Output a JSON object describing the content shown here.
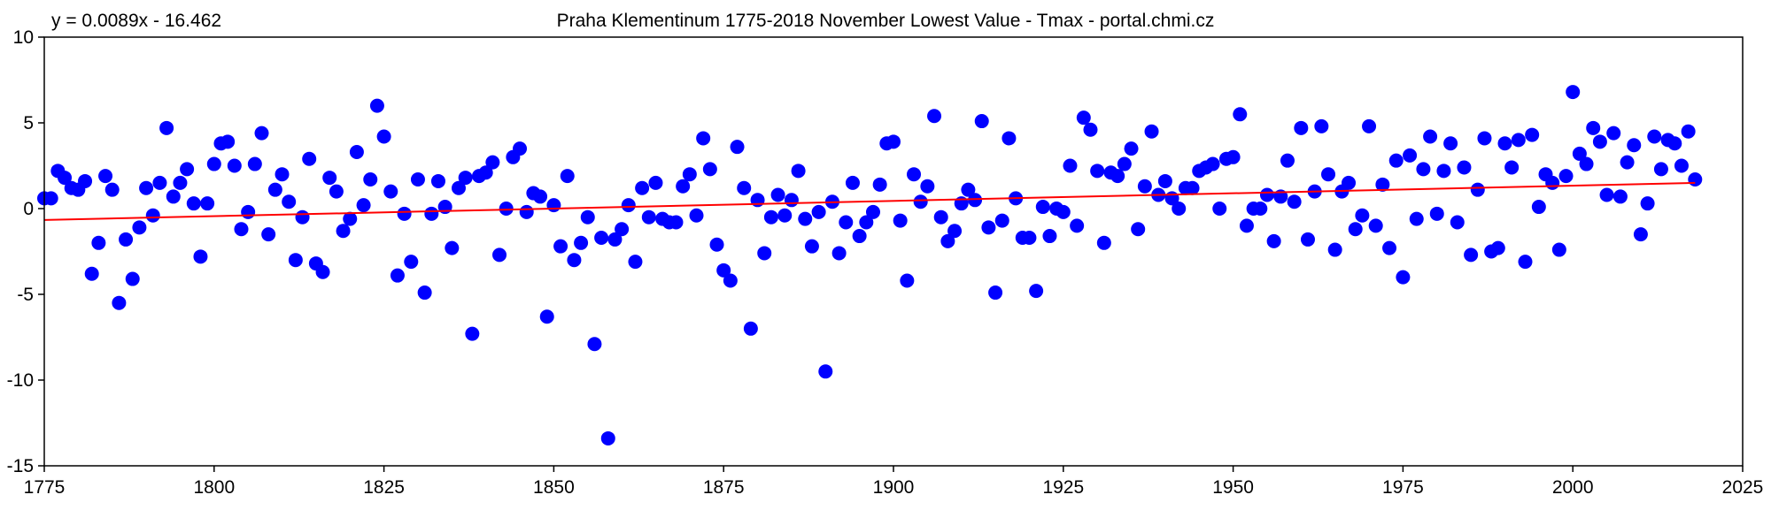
{
  "chart_data": {
    "type": "scatter",
    "title": "Praha Klementinum 1775-2018 November Lowest Value - Tmax - portal.chmi.cz",
    "equation": "y = 0.0089x - 16.462",
    "xlabel": "",
    "ylabel": "",
    "xlim": [
      1775,
      2025
    ],
    "ylim": [
      -15,
      10
    ],
    "x_ticks": [
      1775,
      1800,
      1825,
      1850,
      1875,
      1900,
      1925,
      1950,
      1975,
      2000,
      2025
    ],
    "y_ticks": [
      10,
      5,
      0,
      -5,
      -10,
      -15
    ],
    "grid": false,
    "legend": "none",
    "marker_color": "#0000ff",
    "trend_color": "#ff0000",
    "trendline": {
      "slope": 0.0089,
      "intercept": -16.462,
      "x_start": 1775,
      "x_end": 2018
    },
    "x": [
      1775,
      1776,
      1777,
      1778,
      1779,
      1780,
      1781,
      1782,
      1783,
      1784,
      1785,
      1786,
      1787,
      1788,
      1789,
      1790,
      1791,
      1792,
      1793,
      1794,
      1795,
      1796,
      1797,
      1798,
      1799,
      1800,
      1801,
      1802,
      1803,
      1804,
      1805,
      1806,
      1807,
      1808,
      1809,
      1810,
      1811,
      1812,
      1813,
      1814,
      1815,
      1816,
      1817,
      1818,
      1819,
      1820,
      1821,
      1822,
      1823,
      1824,
      1825,
      1826,
      1827,
      1828,
      1829,
      1830,
      1831,
      1832,
      1833,
      1834,
      1835,
      1836,
      1837,
      1838,
      1839,
      1840,
      1841,
      1842,
      1843,
      1844,
      1845,
      1846,
      1847,
      1848,
      1849,
      1850,
      1851,
      1852,
      1853,
      1854,
      1855,
      1856,
      1857,
      1858,
      1859,
      1860,
      1861,
      1862,
      1863,
      1864,
      1865,
      1866,
      1867,
      1868,
      1869,
      1870,
      1871,
      1872,
      1873,
      1874,
      1875,
      1876,
      1877,
      1878,
      1879,
      1880,
      1881,
      1882,
      1883,
      1884,
      1885,
      1886,
      1887,
      1888,
      1889,
      1890,
      1891,
      1892,
      1893,
      1894,
      1895,
      1896,
      1897,
      1898,
      1899,
      1900,
      1901,
      1902,
      1903,
      1904,
      1905,
      1906,
      1907,
      1908,
      1909,
      1910,
      1911,
      1912,
      1913,
      1914,
      1915,
      1916,
      1917,
      1918,
      1919,
      1920,
      1921,
      1922,
      1923,
      1924,
      1925,
      1926,
      1927,
      1928,
      1929,
      1930,
      1931,
      1932,
      1933,
      1934,
      1935,
      1936,
      1937,
      1938,
      1939,
      1940,
      1941,
      1942,
      1943,
      1944,
      1945,
      1946,
      1947,
      1948,
      1949,
      1950,
      1951,
      1952,
      1953,
      1954,
      1955,
      1956,
      1957,
      1958,
      1959,
      1960,
      1961,
      1962,
      1963,
      1964,
      1965,
      1966,
      1967,
      1968,
      1969,
      1970,
      1971,
      1972,
      1973,
      1974,
      1975,
      1976,
      1977,
      1978,
      1979,
      1980,
      1981,
      1982,
      1983,
      1984,
      1985,
      1986,
      1987,
      1988,
      1989,
      1990,
      1991,
      1992,
      1993,
      1994,
      1995,
      1996,
      1997,
      1998,
      1999,
      2000,
      2001,
      2002,
      2003,
      2004,
      2005,
      2006,
      2007,
      2008,
      2009,
      2010,
      2011,
      2012,
      2013,
      2014,
      2015,
      2016,
      2017,
      2018
    ],
    "y": [
      0.6,
      0.6,
      2.2,
      1.8,
      1.2,
      1.1,
      1.6,
      -3.8,
      -2.0,
      1.9,
      1.1,
      -5.5,
      -1.8,
      -4.1,
      -1.1,
      1.2,
      -0.4,
      1.5,
      4.7,
      0.7,
      1.5,
      2.3,
      0.3,
      -2.8,
      0.3,
      2.6,
      3.8,
      3.9,
      2.5,
      -1.2,
      -0.2,
      2.6,
      4.4,
      -1.5,
      1.1,
      2.0,
      0.4,
      -3.0,
      -0.5,
      2.9,
      -3.2,
      -3.7,
      1.8,
      1.0,
      -1.3,
      -0.6,
      3.3,
      0.2,
      1.7,
      6.0,
      4.2,
      1.0,
      -3.9,
      -0.3,
      -3.1,
      1.7,
      -4.9,
      -0.3,
      1.6,
      0.1,
      -2.3,
      1.2,
      1.8,
      -7.3,
      1.9,
      2.1,
      2.7,
      -2.7,
      0.0,
      3.0,
      3.5,
      -0.2,
      0.9,
      0.7,
      -6.3,
      0.2,
      -2.2,
      1.9,
      -3.0,
      -2.0,
      -0.5,
      -7.9,
      -1.7,
      -13.4,
      -1.8,
      -1.2,
      0.2,
      -3.1,
      1.2,
      -0.5,
      1.5,
      -0.6,
      -0.8,
      -0.8,
      1.3,
      2.0,
      -0.4,
      4.1,
      2.3,
      -2.1,
      -3.6,
      -4.2,
      3.6,
      1.2,
      -7.0,
      0.5,
      -2.6,
      -0.5,
      0.8,
      -0.4,
      0.5,
      2.2,
      -0.6,
      -2.2,
      -0.2,
      -9.5,
      0.4,
      -2.6,
      -0.8,
      1.5,
      -1.6,
      -0.8,
      -0.2,
      1.4,
      3.8,
      3.9,
      -0.7,
      -4.2,
      2.0,
      0.4,
      1.3,
      5.4,
      -0.5,
      -1.9,
      -1.3,
      0.3,
      1.1,
      0.5,
      5.1,
      -1.1,
      -4.9,
      -0.7,
      4.1,
      0.6,
      -1.7,
      -1.7,
      -4.8,
      0.1,
      -1.6,
      0.0,
      -0.2,
      2.5,
      -1.0,
      5.3,
      4.6,
      2.2,
      -2.0,
      2.1,
      1.9,
      2.6,
      3.5,
      -1.2,
      1.3,
      4.5,
      0.8,
      1.6,
      0.6,
      0.0,
      1.2,
      1.2,
      2.2,
      2.4,
      2.6,
      0.0,
      2.9,
      3.0,
      5.5,
      -1.0,
      0.0,
      0.0,
      0.8,
      -1.9,
      0.7,
      2.8,
      0.4,
      4.7,
      -1.8,
      1.0,
      4.8,
      2.0,
      -2.4,
      1.0,
      1.5,
      -1.2,
      -0.4,
      4.8,
      -1.0,
      1.4,
      -2.3,
      2.8,
      -4.0,
      3.1,
      -0.6,
      2.3,
      4.2,
      -0.3,
      2.2,
      3.8,
      -0.8,
      2.4,
      -2.7,
      1.1,
      4.1,
      -2.5,
      -2.3,
      3.8,
      2.4,
      4.0,
      -3.1,
      4.3,
      0.1,
      2.0,
      1.5,
      -2.4,
      1.9,
      6.8,
      3.2,
      2.6,
      4.7,
      3.9,
      0.8,
      4.4,
      0.7,
      2.7,
      3.7,
      -1.5,
      0.3,
      4.2,
      2.3,
      4.0,
      3.8,
      2.5,
      4.5,
      1.7
    ]
  }
}
